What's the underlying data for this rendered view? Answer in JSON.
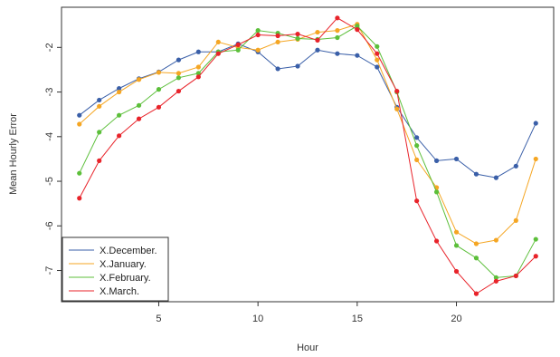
{
  "chart_data": {
    "type": "line",
    "xlabel": "Hour",
    "ylabel": "Mean Hourly Error",
    "xlim": [
      0.1,
      24.9
    ],
    "ylim": [
      -7.7,
      -1.1
    ],
    "xticks": [
      5,
      10,
      15,
      20
    ],
    "yticks": [
      -2,
      -3,
      -4,
      -5,
      -6,
      -7
    ],
    "x": [
      1,
      2,
      3,
      4,
      5,
      6,
      7,
      8,
      9,
      10,
      11,
      12,
      13,
      14,
      15,
      16,
      17,
      18,
      19,
      20,
      21,
      22,
      23,
      24
    ],
    "series": [
      {
        "name": "X.December.",
        "color": "#3a5fa8",
        "values": [
          -3.52,
          -3.18,
          -2.92,
          -2.7,
          -2.55,
          -2.28,
          -2.1,
          -2.1,
          -1.92,
          -2.1,
          -2.48,
          -2.42,
          -2.06,
          -2.14,
          -2.18,
          -2.44,
          -3.34,
          -4.02,
          -4.54,
          -4.5,
          -4.84,
          -4.92,
          -4.66,
          -3.7
        ]
      },
      {
        "name": "X.January.",
        "color": "#f5a623",
        "values": [
          -3.72,
          -3.32,
          -3.0,
          -2.72,
          -2.56,
          -2.58,
          -2.44,
          -1.88,
          -2.0,
          -2.06,
          -1.88,
          -1.82,
          -1.66,
          -1.62,
          -1.48,
          -2.28,
          -3.38,
          -4.52,
          -5.14,
          -6.14,
          -6.4,
          -6.32,
          -5.88,
          -4.5
        ]
      },
      {
        "name": "X.February.",
        "color": "#5cbf3a",
        "values": [
          -4.82,
          -3.9,
          -3.52,
          -3.3,
          -2.94,
          -2.68,
          -2.58,
          -2.1,
          -2.06,
          -1.62,
          -1.68,
          -1.8,
          -1.82,
          -1.78,
          -1.52,
          -1.98,
          -3.0,
          -4.2,
          -5.24,
          -6.44,
          -6.72,
          -7.16,
          -7.12,
          -6.3
        ]
      },
      {
        "name": "X.March.",
        "color": "#e8232a",
        "values": [
          -5.38,
          -4.54,
          -3.98,
          -3.6,
          -3.34,
          -2.98,
          -2.66,
          -2.14,
          -1.94,
          -1.72,
          -1.74,
          -1.7,
          -1.84,
          -1.34,
          -1.6,
          -2.14,
          -2.98,
          -5.44,
          -6.34,
          -7.02,
          -7.52,
          -7.24,
          -7.12,
          -6.68
        ]
      }
    ]
  }
}
